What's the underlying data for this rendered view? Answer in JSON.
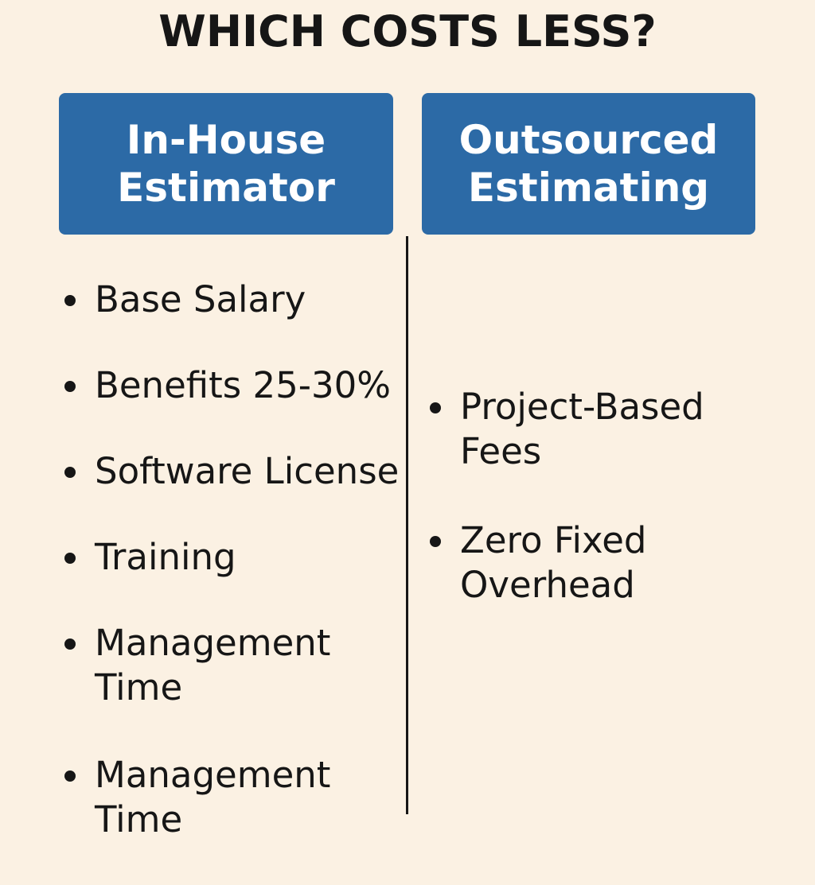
{
  "title": "WHICH COSTS LESS?",
  "columns": {
    "left": {
      "header_line1": "In-House",
      "header_line2": "Estimator",
      "items": [
        {
          "line1": "Base Salary"
        },
        {
          "line1": "Benefits 25-30%"
        },
        {
          "line1": "Software License"
        },
        {
          "line1": "Training"
        },
        {
          "line1": "Management",
          "line2": "Time"
        },
        {
          "line1": "Management",
          "line2": "Time"
        }
      ]
    },
    "right": {
      "header_line1": "Outsourced",
      "header_line2": "Estimating",
      "items": [
        {
          "line1": "Project-Based",
          "line2": "Fees"
        },
        {
          "line1": "Zero Fixed",
          "line2": "Overhead"
        }
      ]
    }
  },
  "colors": {
    "background": "#fbf1e3",
    "header_box": "#2c6aa6",
    "header_text": "#ffffff",
    "text": "#161616"
  }
}
